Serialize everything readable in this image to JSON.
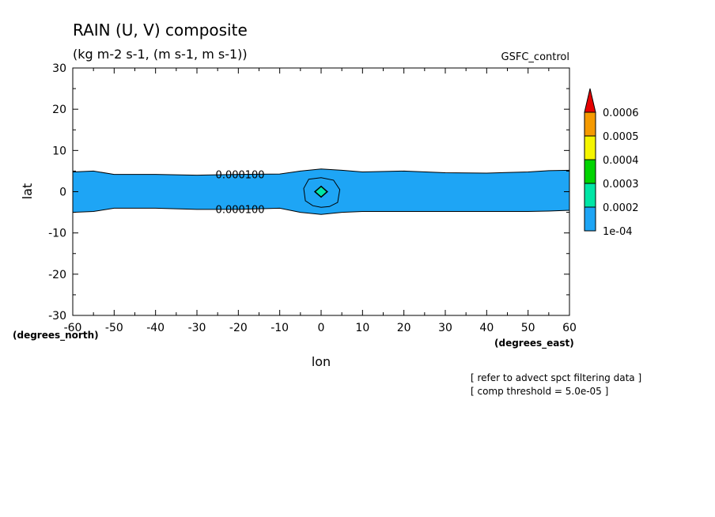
{
  "title": "RAIN (U, V) composite",
  "subtitle": "(kg m-2 s-1, (m s-1, m s-1))",
  "experiment": "GSFC_control",
  "notes": [
    "[ refer to advect spct filtering data ]",
    "[ comp threshold = 5.0e-05 ]"
  ],
  "chart_data": {
    "type": "heatmap",
    "title": "RAIN (U, V) composite",
    "subtitle": "(kg m-2 s-1, (m s-1, m s-1))",
    "xlabel": "lon",
    "ylabel": "lat",
    "x_units": "(degrees_east)",
    "y_units": "(degrees_north)",
    "xlim": [
      -60,
      60
    ],
    "ylim": [
      -30,
      30
    ],
    "x_ticks": [
      -60,
      -50,
      -40,
      -30,
      -20,
      -10,
      0,
      10,
      20,
      30,
      40,
      50,
      60
    ],
    "y_ticks": [
      -30,
      -20,
      -10,
      0,
      10,
      20,
      30
    ],
    "contour_labels": [
      "0.000100",
      "0.000100"
    ],
    "rain_band": {
      "lon": [
        -60,
        -55,
        -50,
        -40,
        -30,
        -20,
        -10,
        -5,
        0,
        5,
        10,
        20,
        30,
        40,
        50,
        55,
        60
      ],
      "north_lat": [
        4.8,
        5.0,
        4.2,
        4.2,
        4.0,
        4.2,
        4.3,
        5.0,
        5.5,
        5.2,
        4.8,
        5.0,
        4.6,
        4.5,
        4.8,
        5.1,
        5.2
      ],
      "south_lat": [
        -5.0,
        -4.8,
        -4.0,
        -4.0,
        -4.3,
        -4.3,
        -4.0,
        -5.0,
        -5.5,
        -5.0,
        -4.8,
        -4.8,
        -4.8,
        -4.8,
        -4.8,
        -4.7,
        -4.5
      ]
    },
    "inner_contour": {
      "lon": [
        -3,
        0,
        3,
        4.5,
        4,
        2,
        0,
        -2,
        -3.8,
        -4.2
      ],
      "lat": [
        3,
        3.4,
        2.8,
        0.5,
        -2.6,
        -3.6,
        -3.8,
        -3.4,
        -2.2,
        0.8
      ]
    },
    "max_diamond": {
      "lon": 0,
      "lat": 0,
      "dlon": 1.5,
      "dlat": 1.3
    },
    "colorbar": {
      "levels": [
        "1e-04",
        "0.0002",
        "0.0003",
        "0.0004",
        "0.0005",
        "0.0006"
      ],
      "colors": [
        "#1ea5f5",
        "#00e6a6",
        "#00d400",
        "#f5f500",
        "#f59a00",
        "#e60000"
      ]
    },
    "band_color": "#1ea5f5",
    "diamond_color": "#00e6a6"
  }
}
